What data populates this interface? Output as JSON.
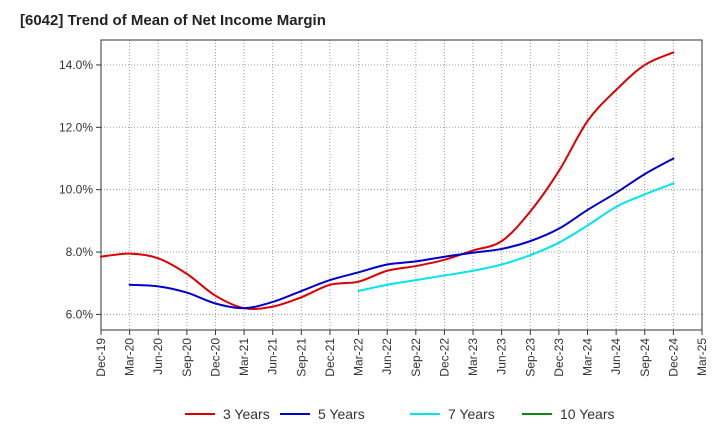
{
  "title": "[6042]  Trend of Mean of Net Income Margin",
  "colors": {
    "three_years": "#dd0000",
    "five_years": "#0000cc",
    "seven_years": "#00e5ee",
    "ten_years": "#118811",
    "grid": "#999999",
    "axis": "#333333"
  },
  "chart_data": {
    "type": "line",
    "title": "[6042]  Trend of Mean of Net Income Margin",
    "xlabel": "",
    "ylabel": "",
    "ylim": [
      5.5,
      14.8
    ],
    "grid": true,
    "legend_position": "bottom",
    "x": [
      "Dec-19",
      "Mar-20",
      "Jun-20",
      "Sep-20",
      "Dec-20",
      "Mar-21",
      "Jun-21",
      "Sep-21",
      "Dec-21",
      "Mar-22",
      "Jun-22",
      "Sep-22",
      "Dec-22",
      "Mar-23",
      "Jun-23",
      "Sep-23",
      "Dec-23",
      "Mar-24",
      "Jun-24",
      "Sep-24",
      "Dec-24",
      "Mar-25"
    ],
    "y_ticks": [
      6.0,
      8.0,
      10.0,
      12.0,
      14.0
    ],
    "y_tick_labels": [
      "6.0%",
      "8.0%",
      "10.0%",
      "12.0%",
      "14.0%"
    ],
    "series": [
      {
        "name": "3 Years",
        "color_key": "three_years",
        "values": [
          7.85,
          7.95,
          7.8,
          7.3,
          6.6,
          6.2,
          6.25,
          6.55,
          6.95,
          7.05,
          7.4,
          7.55,
          7.75,
          8.05,
          8.35,
          9.3,
          10.6,
          12.2,
          13.2,
          14.0,
          14.4,
          null
        ]
      },
      {
        "name": "5 Years",
        "color_key": "five_years",
        "values": [
          null,
          6.95,
          6.9,
          6.7,
          6.35,
          6.2,
          6.4,
          6.75,
          7.1,
          7.35,
          7.6,
          7.7,
          7.85,
          7.98,
          8.1,
          8.35,
          8.75,
          9.35,
          9.9,
          10.5,
          11.0,
          null
        ]
      },
      {
        "name": "7 Years",
        "color_key": "seven_years",
        "values": [
          null,
          null,
          null,
          null,
          null,
          null,
          null,
          null,
          null,
          6.75,
          6.95,
          7.1,
          7.25,
          7.4,
          7.6,
          7.9,
          8.3,
          8.85,
          9.45,
          9.85,
          10.2,
          null
        ]
      },
      {
        "name": "10 Years",
        "color_key": "ten_years",
        "values": [
          null,
          null,
          null,
          null,
          null,
          null,
          null,
          null,
          null,
          null,
          null,
          null,
          null,
          null,
          null,
          null,
          null,
          null,
          null,
          null,
          null,
          null
        ]
      }
    ]
  }
}
